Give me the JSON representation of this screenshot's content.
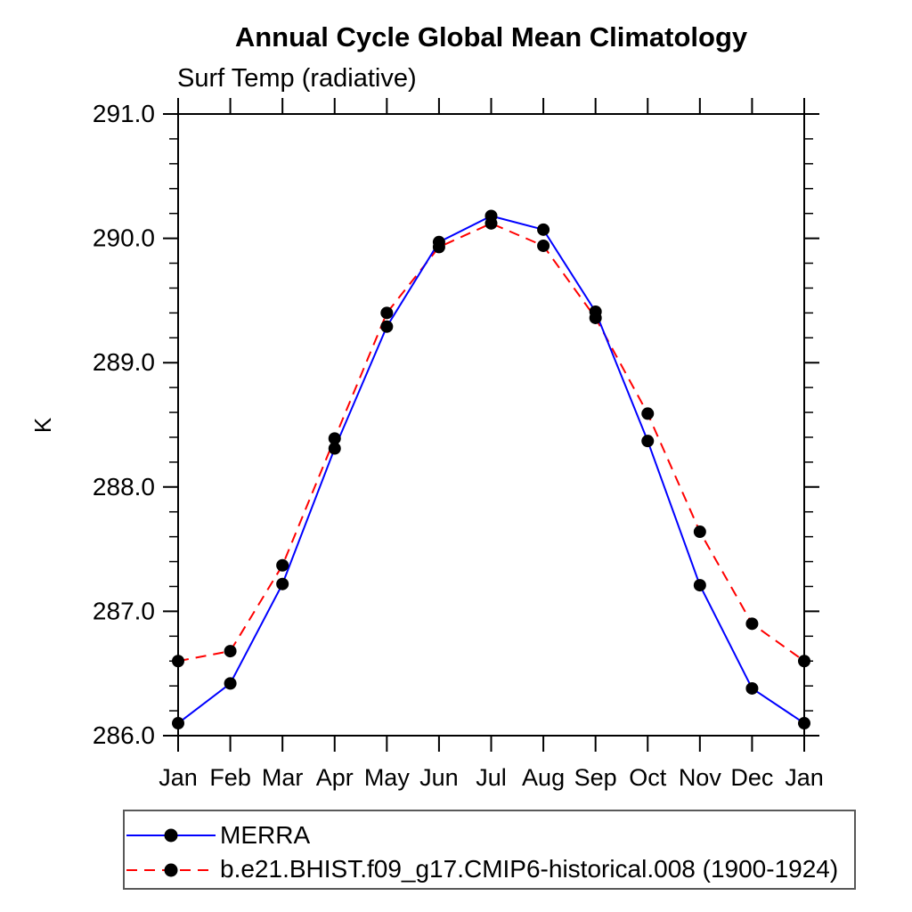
{
  "chart_data": {
    "type": "line",
    "title": "Annual Cycle Global Mean Climatology",
    "subtitle": "Surf Temp (radiative)",
    "xlabel": "",
    "ylabel": "K",
    "categories": [
      "Jan",
      "Feb",
      "Mar",
      "Apr",
      "May",
      "Jun",
      "Jul",
      "Aug",
      "Sep",
      "Oct",
      "Nov",
      "Dec",
      "Jan"
    ],
    "ylim": [
      286.0,
      291.0
    ],
    "y_major_ticks": [
      286.0,
      287.0,
      288.0,
      289.0,
      290.0,
      291.0
    ],
    "y_major_tick_labels": [
      "286.0",
      "287.0",
      "288.0",
      "289.0",
      "290.0",
      "291.0"
    ],
    "y_minor_step": 0.2,
    "grid": false,
    "legend_position": "bottom-left",
    "marker": "filled-circle",
    "marker_color": "#000000",
    "axis_color": "#000000",
    "series": [
      {
        "name": "MERRA",
        "color": "#0000ff",
        "line_style": "solid",
        "values": [
          286.1,
          286.42,
          287.22,
          288.31,
          289.29,
          289.97,
          290.18,
          290.07,
          289.41,
          288.37,
          287.21,
          286.38,
          286.1
        ]
      },
      {
        "name": "b.e21.BHIST.f09_g17.CMIP6-historical.008 (1900-1924)",
        "color": "#ff0000",
        "line_style": "dashed",
        "values": [
          286.6,
          286.68,
          287.37,
          288.39,
          289.4,
          289.93,
          290.12,
          289.94,
          289.36,
          288.59,
          287.64,
          286.9,
          286.6
        ]
      }
    ]
  }
}
